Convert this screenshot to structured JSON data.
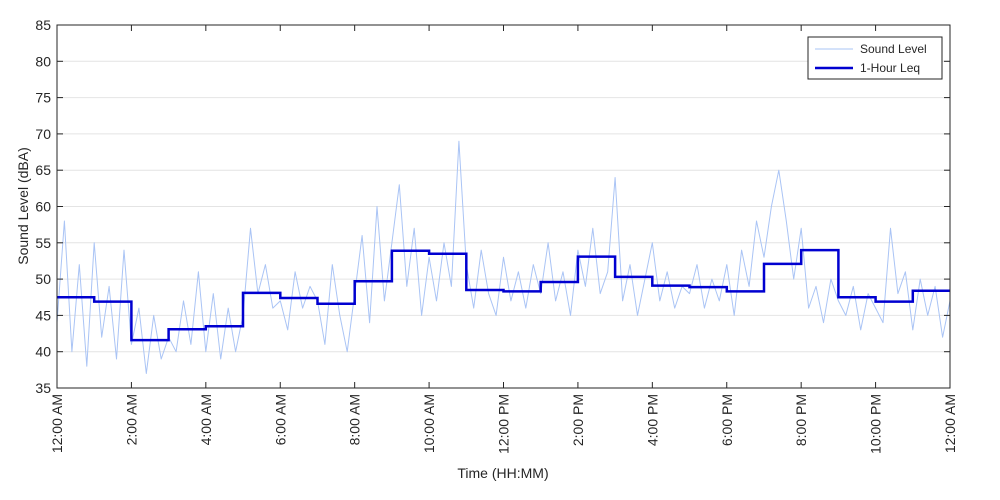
{
  "chart_data": {
    "type": "line",
    "xlabel": "Time (HH:MM)",
    "ylabel": "Sound Level (dBA)",
    "ylim": [
      35,
      85
    ],
    "yticks": [
      35,
      40,
      45,
      50,
      55,
      60,
      65,
      70,
      75,
      80,
      85
    ],
    "xlim": [
      0,
      24
    ],
    "xtick_hours": [
      0,
      2,
      4,
      6,
      8,
      10,
      12,
      14,
      16,
      18,
      20,
      22,
      24
    ],
    "xtick_labels": [
      "12:00 AM",
      "2:00 AM",
      "4:00 AM",
      "6:00 AM",
      "8:00 AM",
      "10:00 AM",
      "12:00 PM",
      "2:00 PM",
      "4:00 PM",
      "6:00 PM",
      "8:00 PM",
      "10:00 PM",
      "12:00 AM"
    ],
    "grid": "horizontal",
    "legend_position": "top-right",
    "series": [
      {
        "name": "Sound Level",
        "color": "#aac4f5",
        "x": [
          0.0,
          0.2,
          0.4,
          0.6,
          0.8,
          1.0,
          1.2,
          1.4,
          1.6,
          1.8,
          2.0,
          2.2,
          2.4,
          2.6,
          2.8,
          3.0,
          3.2,
          3.4,
          3.6,
          3.8,
          4.0,
          4.2,
          4.4,
          4.6,
          4.8,
          5.0,
          5.2,
          5.4,
          5.6,
          5.8,
          6.0,
          6.2,
          6.4,
          6.6,
          6.8,
          7.0,
          7.2,
          7.4,
          7.6,
          7.8,
          8.0,
          8.2,
          8.4,
          8.6,
          8.8,
          9.0,
          9.2,
          9.4,
          9.6,
          9.8,
          10.0,
          10.2,
          10.4,
          10.6,
          10.8,
          11.0,
          11.2,
          11.4,
          11.6,
          11.8,
          12.0,
          12.2,
          12.4,
          12.6,
          12.8,
          13.0,
          13.2,
          13.4,
          13.6,
          13.8,
          14.0,
          14.2,
          14.4,
          14.6,
          14.8,
          15.0,
          15.2,
          15.4,
          15.6,
          15.8,
          16.0,
          16.2,
          16.4,
          16.6,
          16.8,
          17.0,
          17.2,
          17.4,
          17.6,
          17.8,
          18.0,
          18.2,
          18.4,
          18.6,
          18.8,
          19.0,
          19.2,
          19.4,
          19.6,
          19.8,
          20.0,
          20.2,
          20.4,
          20.6,
          20.8,
          21.0,
          21.2,
          21.4,
          21.6,
          21.8,
          22.0,
          22.2,
          22.4,
          22.6,
          22.8,
          23.0,
          23.2,
          23.4,
          23.6,
          23.8,
          24.0
        ],
        "y": [
          44,
          58,
          40,
          52,
          38,
          55,
          42,
          49,
          39,
          54,
          41,
          46,
          37,
          45,
          39,
          42,
          40,
          47,
          41,
          51,
          40,
          48,
          39,
          46,
          40,
          45,
          57,
          48,
          52,
          46,
          47,
          43,
          51,
          46,
          49,
          47,
          41,
          52,
          45,
          40,
          48,
          56,
          44,
          60,
          47,
          55,
          63,
          49,
          57,
          45,
          53,
          47,
          55,
          49,
          69,
          52,
          46,
          54,
          48,
          45,
          53,
          47,
          51,
          46,
          52,
          48,
          55,
          47,
          51,
          45,
          54,
          49,
          57,
          48,
          51,
          64,
          47,
          52,
          45,
          50,
          55,
          47,
          51,
          46,
          49,
          48,
          52,
          46,
          50,
          47,
          52,
          45,
          54,
          49,
          58,
          53,
          60,
          65,
          58,
          50,
          57,
          46,
          49,
          44,
          50,
          47,
          45,
          49,
          43,
          48,
          46,
          44,
          57,
          48,
          51,
          43,
          50,
          45,
          49,
          42,
          47
        ]
      },
      {
        "name": "1-Hour Leq",
        "color": "#0000d0",
        "step": true,
        "hour_values": [
          47.5,
          46.9,
          41.6,
          43.1,
          43.5,
          48.1,
          47.4,
          46.6,
          49.7,
          53.9,
          53.5,
          48.5,
          48.3,
          49.6,
          53.1,
          50.3,
          49.1,
          48.9,
          48.3,
          52.1,
          54.0,
          47.5,
          46.9,
          48.4
        ]
      }
    ]
  }
}
